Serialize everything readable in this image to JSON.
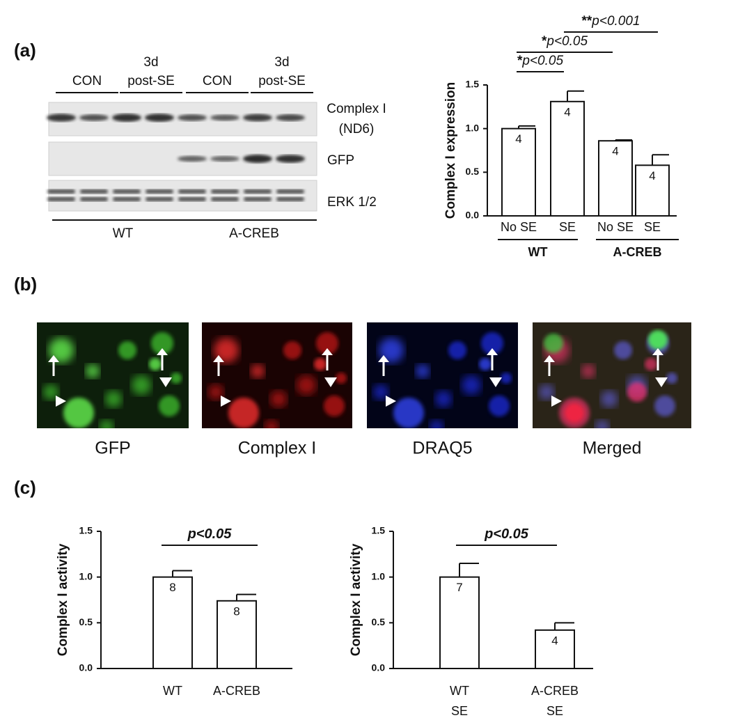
{
  "panels": {
    "a": "(a)",
    "b": "(b)",
    "c": "(c)"
  },
  "blot": {
    "columns": [
      [
        "CON"
      ],
      [
        "3d",
        "post-SE"
      ],
      [
        "CON"
      ],
      [
        "3d",
        "post-SE"
      ]
    ],
    "rows": [
      [
        "Complex I",
        "(ND6)"
      ],
      [
        "GFP"
      ],
      [
        "ERK 1/2"
      ]
    ],
    "groups": [
      "WT",
      "A-CREB"
    ]
  },
  "images": {
    "labels": [
      "GFP",
      "Complex I",
      "DRAQ5",
      "Merged"
    ]
  },
  "chart_data": [
    {
      "type": "bar",
      "ylabel": "Complex I expression",
      "categories": [
        [
          "No SE"
        ],
        [
          "SE"
        ],
        [
          "No SE"
        ],
        [
          "SE"
        ]
      ],
      "groups": [
        "WT",
        "A-CREB"
      ],
      "values": [
        1.0,
        1.31,
        0.86,
        0.58
      ],
      "errors": [
        0.03,
        0.12,
        0.01,
        0.12
      ],
      "n_labels": [
        4,
        4,
        4,
        4
      ],
      "color": "#ffffff",
      "ylim": [
        0,
        1.5
      ],
      "yticks": [
        {
          "value": 0,
          "label": "0.0"
        },
        {
          "value": 0.5,
          "label": "0.5"
        },
        {
          "value": 1,
          "label": "1.0"
        },
        {
          "value": 1.5,
          "label": "1.5"
        }
      ],
      "significance": [
        {
          "stars": "*",
          "label": "p<0.05"
        },
        {
          "stars": "*",
          "label": "p<0.05"
        },
        {
          "stars": "**",
          "label": "p<0.001"
        }
      ]
    },
    {
      "type": "bar",
      "ylabel": "Complex I activity",
      "categories": [
        [
          "WT"
        ],
        [
          "A-CREB"
        ]
      ],
      "values": [
        1.0,
        0.74
      ],
      "errors": [
        0.07,
        0.07
      ],
      "n_labels": [
        8,
        8
      ],
      "color": "#ffffff",
      "ylim": [
        0,
        1.5
      ],
      "yticks": [
        {
          "value": 0,
          "label": "0.0"
        },
        {
          "value": 0.5,
          "label": "0.5"
        },
        {
          "value": 1,
          "label": "1.0"
        },
        {
          "value": 1.5,
          "label": "1.5"
        }
      ],
      "significance": [
        {
          "label": "p<0.05"
        }
      ]
    },
    {
      "type": "bar",
      "ylabel": "Complex I activity",
      "categories": [
        [
          "WT",
          "SE"
        ],
        [
          "A-CREB",
          "SE"
        ]
      ],
      "values": [
        1.0,
        0.42
      ],
      "errors": [
        0.15,
        0.08
      ],
      "n_labels": [
        7,
        4
      ],
      "color": "#ffffff",
      "ylim": [
        0,
        1.5
      ],
      "yticks": [
        {
          "value": 0,
          "label": "0.0"
        },
        {
          "value": 0.5,
          "label": "0.5"
        },
        {
          "value": 1,
          "label": "1.0"
        },
        {
          "value": 1.5,
          "label": "1.5"
        }
      ],
      "significance": [
        {
          "label": "p<0.05"
        }
      ]
    }
  ]
}
